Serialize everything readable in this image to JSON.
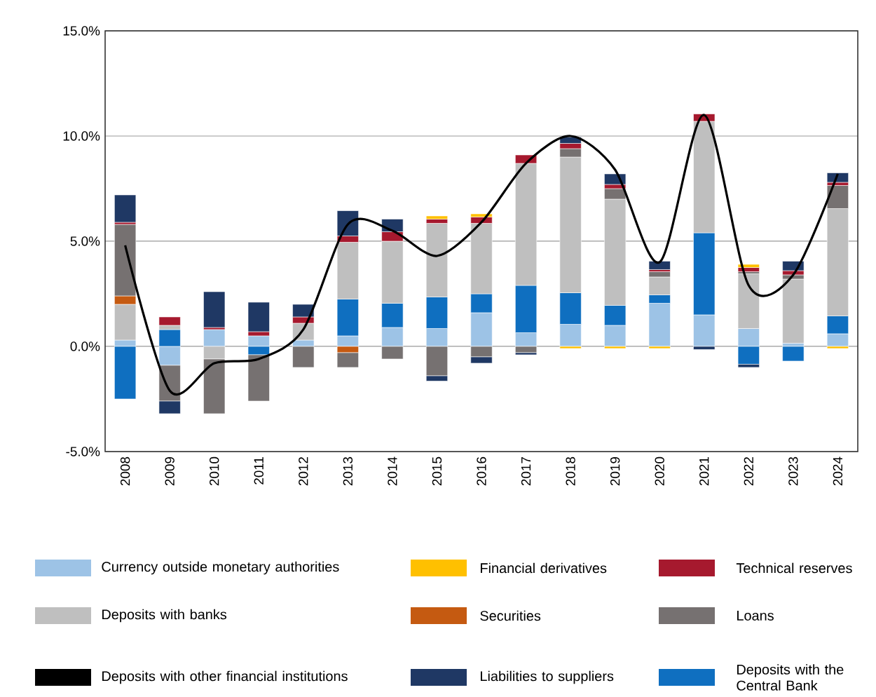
{
  "chart_data": {
    "type": "bar",
    "stacked": true,
    "categories": [
      "2008",
      "2009",
      "2010",
      "2011",
      "2012",
      "2013",
      "2014",
      "2015",
      "2016",
      "2017",
      "2018",
      "2019",
      "2020",
      "2021",
      "2022",
      "2023",
      "2024"
    ],
    "series": [
      {
        "name": "Currency outside monetary authorities",
        "color": "#9dc3e6",
        "values": [
          0.3,
          -0.9,
          0.8,
          0.5,
          0.3,
          0.5,
          0.9,
          0.85,
          1.6,
          0.65,
          1.05,
          1.0,
          2.05,
          1.5,
          0.85,
          0.15,
          0.6
        ]
      },
      {
        "name": "Deposits with the Central Bank",
        "color": "#0f6fc0",
        "values": [
          -2.5,
          0.8,
          0,
          -0.4,
          0,
          1.75,
          1.15,
          1.5,
          0.9,
          2.25,
          1.5,
          0.95,
          0.4,
          3.9,
          -0.85,
          -0.7,
          0.85
        ]
      },
      {
        "name": "Deposits with banks",
        "color": "#bfbfbf",
        "values": [
          1.7,
          0.2,
          -0.6,
          0,
          0.8,
          2.7,
          2.95,
          3.5,
          3.35,
          5.8,
          6.45,
          5.05,
          0.85,
          5.3,
          2.6,
          3.05,
          5.1
        ]
      },
      {
        "name": "Securities",
        "color": "#c55a11",
        "values": [
          0.4,
          0,
          0,
          0,
          0,
          -0.3,
          0,
          0,
          0,
          0,
          0,
          0,
          0,
          0,
          0,
          0,
          0
        ]
      },
      {
        "name": "Loans",
        "color": "#767171",
        "values": [
          3.4,
          -1.7,
          -2.6,
          -2.2,
          -1.0,
          -0.7,
          -0.6,
          -1.4,
          -0.5,
          -0.3,
          0.4,
          0.5,
          0.25,
          0,
          0.1,
          0.2,
          1.1
        ]
      },
      {
        "name": "Deposits with other financial institutions",
        "color": "#000000",
        "values": [
          0,
          0,
          0,
          0,
          0,
          0,
          0,
          0,
          0,
          0,
          0,
          0,
          0,
          0,
          0,
          0,
          0
        ]
      },
      {
        "name": "Technical reserves",
        "color": "#a6192e",
        "values": [
          0.1,
          0.4,
          0.1,
          0.2,
          0.3,
          0.3,
          0.45,
          0.2,
          0.3,
          0.4,
          0.25,
          0.2,
          0.1,
          0.35,
          0.2,
          0.2,
          0.15
        ]
      },
      {
        "name": "Financial derivatives",
        "color": "#ffc000",
        "values": [
          0,
          0,
          0,
          0,
          0,
          0,
          0,
          0.15,
          0.15,
          0,
          -0.1,
          -0.1,
          -0.1,
          0,
          0.15,
          0,
          -0.1
        ]
      },
      {
        "name": "Liabilities to suppliers",
        "color": "#1f3864",
        "values": [
          1.3,
          -0.6,
          1.7,
          1.4,
          0.6,
          1.2,
          0.6,
          -0.25,
          -0.3,
          -0.1,
          0.3,
          0.5,
          0.4,
          -0.15,
          -0.15,
          0.45,
          0.45
        ]
      },
      {
        "type": "line",
        "color": "#000000",
        "values": [
          4.8,
          -2.1,
          -0.8,
          -0.6,
          0.8,
          5.8,
          5.5,
          4.3,
          5.9,
          8.7,
          10.0,
          8.4,
          4.0,
          11.0,
          2.9,
          3.4,
          8.2
        ]
      }
    ],
    "ylim": [
      -5,
      15
    ],
    "yticks": [
      {
        "value": -5,
        "label": "-5.0%"
      },
      {
        "value": 0,
        "label": "0.0%"
      },
      {
        "value": 5,
        "label": "5.0%"
      },
      {
        "value": 10,
        "label": "10.0%"
      },
      {
        "value": 15,
        "label": "15.0%"
      }
    ],
    "grid": "y",
    "legend": "bottom",
    "line_style": "solid"
  }
}
